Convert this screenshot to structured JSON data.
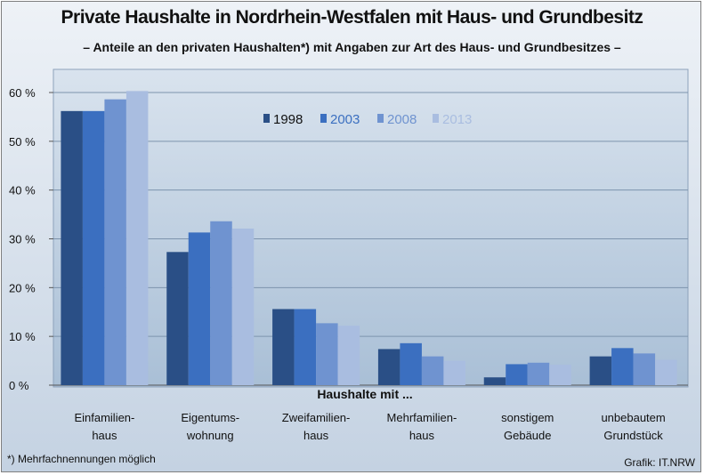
{
  "header": {
    "title": "Private Haushalte in Nordrhein-Westfalen mit Haus- und Grundbesitz",
    "subtitle": "– Anteile an den privaten Haushalten*) mit Angaben zur Art des Haus- und Grundbesitzes –"
  },
  "footer": {
    "footnote": "*) Mehrfachnennungen möglich",
    "credit": "Grafik: IT.NRW"
  },
  "colors": {
    "series": [
      "#2a4f86",
      "#3b6fc0",
      "#6f93d0",
      "#a9bde0"
    ],
    "plot_top": "#d9e3ee",
    "plot_bottom": "#a9bfd6"
  },
  "chart_data": {
    "type": "bar",
    "title": "Private Haushalte in Nordrhein-Westfalen mit Haus- und Grundbesitz",
    "subtitle": "– Anteile an den privaten Haushalten*) mit Angaben zur Art des Haus- und Grundbesitzes –",
    "xlabel": "Haushalte mit ...",
    "ylabel": "",
    "ylim": [
      0,
      60
    ],
    "yticks": [
      "0 %",
      "10 %",
      "20 %",
      "30 %",
      "40 %",
      "50 %",
      "60 %"
    ],
    "grid": true,
    "legend_position": "top-center",
    "categories": [
      [
        "Einfamilien-",
        "haus"
      ],
      [
        "Eigentums-",
        "wohnung"
      ],
      [
        "Zweifamilien-",
        "haus"
      ],
      [
        "Mehrfamilien-",
        "haus"
      ],
      [
        "sonstigem",
        "Gebäude"
      ],
      [
        "unbebautem",
        "Grundstück"
      ]
    ],
    "series": [
      {
        "name": "1998",
        "values": [
          56.2,
          27.3,
          15.6,
          7.4,
          1.6,
          5.9
        ]
      },
      {
        "name": "2003",
        "values": [
          56.2,
          31.3,
          15.6,
          8.6,
          4.3,
          7.6
        ]
      },
      {
        "name": "2008",
        "values": [
          58.6,
          33.6,
          12.7,
          5.9,
          4.6,
          6.5
        ]
      },
      {
        "name": "2013",
        "values": [
          60.3,
          32.1,
          12.2,
          5.0,
          4.2,
          5.2
        ]
      }
    ]
  }
}
